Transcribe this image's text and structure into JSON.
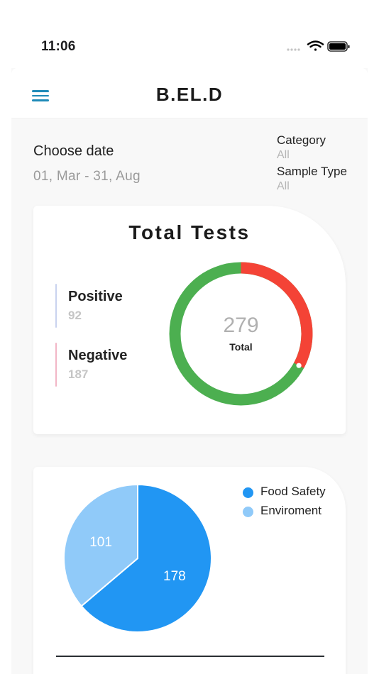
{
  "status_bar": {
    "time": "11:06",
    "icons": [
      "signal-dots-icon",
      "wifi-icon",
      "battery-icon"
    ]
  },
  "header": {
    "menu_icon": "hamburger-menu-icon",
    "title": "B.EL.D"
  },
  "filters": {
    "date_label": "Choose date",
    "date_range": "01, Mar - 31, Aug",
    "category_label": "Category",
    "category_value": "All",
    "sample_type_label": "Sample Type",
    "sample_type_value": "All"
  },
  "total_tests": {
    "title": "Total Tests",
    "positive_label": "Positive",
    "positive_count": "92",
    "negative_label": "Negative",
    "negative_count": "187",
    "total_value": "279",
    "total_label": "Total",
    "colors": {
      "positive_bar": "#c9d3ef",
      "negative_bar": "#f2b6c6",
      "ring_main": "#4caf50",
      "ring_segment": "#f44336"
    }
  },
  "chart_data": {
    "type": "pie",
    "categories": [
      "Food Safety",
      "Enviroment"
    ],
    "values": [
      178,
      101
    ],
    "colors": [
      "#2196f3",
      "#90caf9"
    ],
    "title": "",
    "legend_position": "top-right"
  }
}
